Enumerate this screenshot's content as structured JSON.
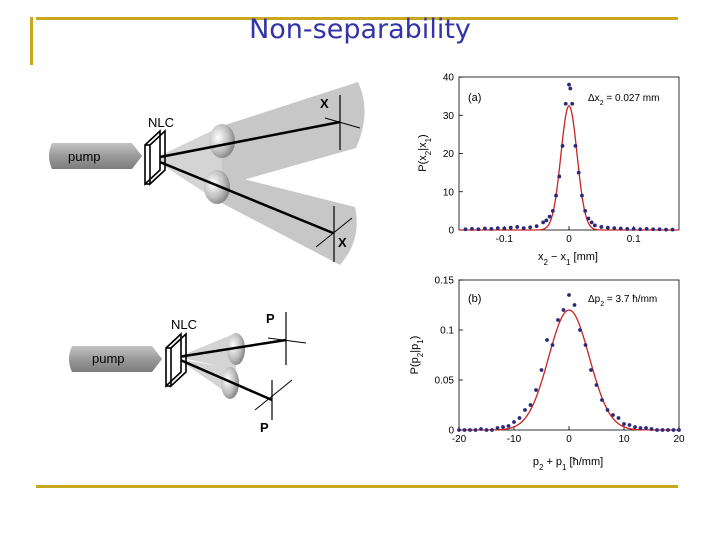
{
  "title": "Non-separability",
  "colors": {
    "frame": "#c8a81e",
    "title": "#3333aa",
    "fit": "#cc2222",
    "points": "#2a2a7a",
    "beam": "#bbbbbb"
  },
  "diagram_top": {
    "source": "pump",
    "crystal": "NLC",
    "det1": "X",
    "det2": "X"
  },
  "diagram_bottom": {
    "source": "pump",
    "crystal": "NLC",
    "det1": "P",
    "det2": "P"
  },
  "chart_data": [
    {
      "type": "scatter",
      "panel": "(a)",
      "annotation_var": "Δx",
      "annotation_sub": "2",
      "annotation_val": " = 0.027 mm",
      "ylabel_parts": [
        "P(x",
        "2",
        "|x",
        "1",
        ")"
      ],
      "xlabel_parts": [
        "x",
        "2",
        " − x",
        "1",
        " [mm]"
      ],
      "xlim": [
        -0.17,
        0.17
      ],
      "ylim": [
        0,
        40
      ],
      "xticks": [
        -0.1,
        0,
        0.1
      ],
      "xtick_labels": [
        "-0.1",
        "0",
        "0.1"
      ],
      "yticks": [
        0,
        10,
        20,
        30,
        40
      ],
      "ytick_labels": [
        "0",
        "10",
        "20",
        "30",
        "40"
      ],
      "fit": {
        "shape": "gaussian",
        "amplitude": 32.5,
        "sigma": 0.0125
      },
      "points": {
        "x": [
          -0.16,
          -0.15,
          -0.14,
          -0.13,
          -0.12,
          -0.11,
          -0.1,
          -0.09,
          -0.08,
          -0.07,
          -0.06,
          -0.05,
          -0.04,
          -0.035,
          -0.03,
          -0.025,
          -0.02,
          -0.015,
          -0.01,
          -0.005,
          0,
          0.002,
          0.005,
          0.01,
          0.015,
          0.02,
          0.025,
          0.03,
          0.035,
          0.04,
          0.05,
          0.06,
          0.07,
          0.08,
          0.09,
          0.1,
          0.11,
          0.12,
          0.13,
          0.14,
          0.15,
          0.16
        ],
        "y": [
          0.2,
          0.3,
          0.2,
          0.4,
          0.3,
          0.5,
          0.4,
          0.6,
          0.8,
          0.5,
          0.7,
          1.0,
          2.0,
          2.5,
          3.5,
          5,
          9,
          14,
          22,
          33,
          38,
          37,
          33,
          22,
          15,
          9,
          5,
          3,
          2,
          1.2,
          0.8,
          0.6,
          0.5,
          0.4,
          0.3,
          0.3,
          0.2,
          0.3,
          0.2,
          0.2,
          0.1,
          0.1
        ]
      }
    },
    {
      "type": "scatter",
      "panel": "(b)",
      "annotation_var": "Δp",
      "annotation_sub": "2",
      "annotation_val": " = 3.7 ħ/mm",
      "ylabel_parts": [
        "P(p",
        "2",
        "|p",
        "1",
        ")"
      ],
      "xlabel_parts": [
        "p",
        "2",
        " + p",
        "1",
        " [ħ/mm]"
      ],
      "xlim": [
        -20,
        20
      ],
      "ylim": [
        0,
        0.15
      ],
      "xticks": [
        -20,
        -10,
        0,
        10,
        20
      ],
      "xtick_labels": [
        "-20",
        "-10",
        "0",
        "10",
        "20"
      ],
      "yticks": [
        0,
        0.05,
        0.1,
        0.15
      ],
      "ytick_labels": [
        "0",
        "0.05",
        "0.1",
        "0.15"
      ],
      "fit": {
        "shape": "gaussian",
        "amplitude": 0.12,
        "sigma": 3.7
      },
      "points": {
        "x": [
          -20,
          -19,
          -18,
          -17,
          -16,
          -15,
          -14,
          -13,
          -12,
          -11,
          -10,
          -9,
          -8,
          -7,
          -6,
          -5,
          -4,
          -3,
          -2,
          -1,
          0,
          1,
          2,
          3,
          4,
          5,
          6,
          7,
          8,
          9,
          10,
          11,
          12,
          13,
          14,
          15,
          16,
          17,
          18,
          19,
          20
        ],
        "y": [
          0,
          0,
          0,
          0,
          0.001,
          0,
          0,
          0.002,
          0.003,
          0.004,
          0.008,
          0.012,
          0.02,
          0.025,
          0.04,
          0.06,
          0.09,
          0.085,
          0.11,
          0.12,
          0.135,
          0.125,
          0.1,
          0.085,
          0.06,
          0.045,
          0.03,
          0.02,
          0.015,
          0.012,
          0.006,
          0.005,
          0.003,
          0.002,
          0.002,
          0.001,
          0,
          0,
          0,
          0,
          0
        ]
      }
    }
  ]
}
